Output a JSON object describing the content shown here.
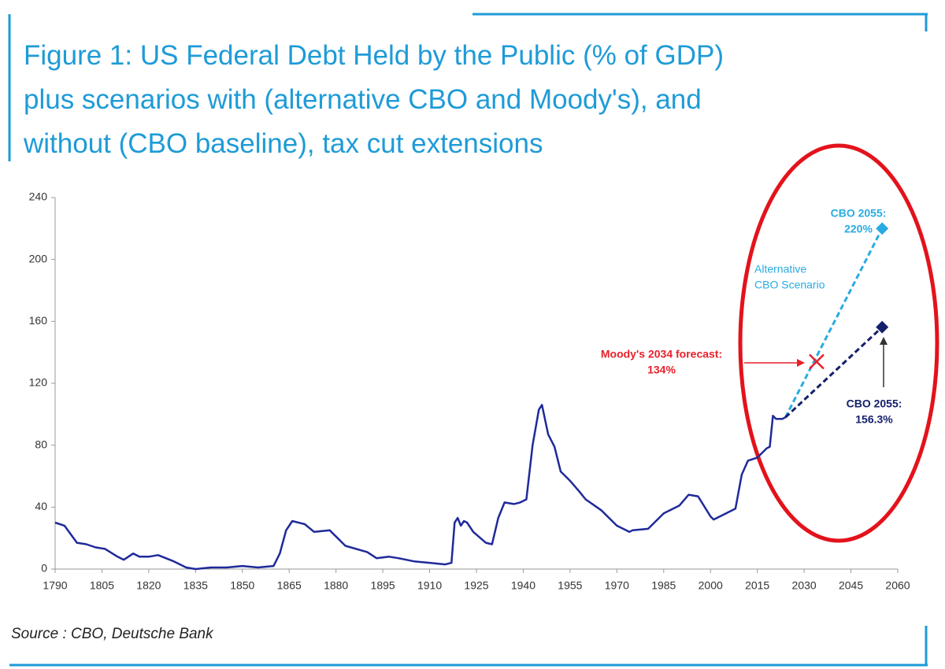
{
  "chart_data": {
    "type": "line",
    "title_lines": [
      "Figure 1: US Federal Debt Held by the Public (% of GDP)",
      "plus scenarios with (alternative CBO and Moody's), and",
      "without (CBO baseline), tax cut extensions"
    ],
    "source": "Source : CBO, Deutsche Bank",
    "xlim": [
      1790,
      2060
    ],
    "xticks": [
      1790,
      1805,
      1820,
      1835,
      1850,
      1865,
      1880,
      1895,
      1910,
      1925,
      1940,
      1955,
      1970,
      1985,
      2000,
      2015,
      2030,
      2045,
      2060
    ],
    "ylim": [
      0,
      240
    ],
    "yticks": [
      0,
      40,
      80,
      120,
      160,
      200,
      240
    ],
    "series": [
      {
        "color": "#1f2a9a",
        "style": "solid",
        "x": [
          1790,
          1793,
          1797,
          1800,
          1803,
          1806,
          1810,
          1812,
          1815,
          1817,
          1820,
          1823,
          1828,
          1832,
          1835,
          1840,
          1845,
          1850,
          1855,
          1860,
          1862,
          1864,
          1866,
          1870,
          1873,
          1878,
          1880,
          1883,
          1890,
          1893,
          1897,
          1900,
          1905,
          1910,
          1915,
          1917,
          1918,
          1919,
          1920,
          1921,
          1922,
          1924,
          1928,
          1930,
          1932,
          1934,
          1937,
          1939,
          1941,
          1943,
          1945,
          1946,
          1948,
          1950,
          1952,
          1955,
          1958,
          1960,
          1965,
          1970,
          1974,
          1975,
          1980,
          1985,
          1990,
          1993,
          1996,
          2000,
          2001,
          2005,
          2008,
          2010,
          2012,
          2015,
          2018,
          2019,
          2020,
          2021,
          2023,
          2024
        ],
        "values": [
          30,
          28,
          17,
          16,
          14,
          13,
          8,
          6,
          10,
          8,
          8,
          9,
          5,
          1,
          0,
          1,
          1,
          2,
          1,
          2,
          10,
          25,
          31,
          29,
          24,
          25,
          21,
          15,
          11,
          7,
          8,
          7,
          5,
          4,
          3,
          4,
          30,
          33,
          28,
          31,
          30,
          24,
          17,
          16,
          33,
          43,
          42,
          43,
          45,
          80,
          103,
          106,
          87,
          79,
          63,
          57,
          50,
          45,
          38,
          28,
          24,
          25,
          26,
          36,
          41,
          48,
          47,
          34,
          32,
          36,
          39,
          61,
          70,
          72,
          78,
          79,
          99,
          97,
          97,
          98
        ]
      },
      {
        "color": "#29abe2",
        "style": "dashed",
        "marker": "diamond",
        "x": [
          2024,
          2055
        ],
        "values": [
          98,
          220
        ]
      },
      {
        "color": "#14206b",
        "style": "dashed",
        "marker": "diamond",
        "x": [
          2024,
          2055
        ],
        "values": [
          98,
          156.3
        ]
      },
      {
        "color": "#e8202a",
        "style": "none",
        "marker": "x",
        "x": [
          2034
        ],
        "values": [
          134
        ]
      }
    ],
    "annotations": [
      {
        "lines": [
          "CBO 2055:",
          "220%"
        ],
        "color": "#29abe2"
      },
      {
        "lines": [
          "Alternative",
          "CBO Scenario"
        ],
        "color": "#29abe2"
      },
      {
        "lines": [
          "Moody's 2034 forecast:",
          "134%"
        ],
        "color": "#e8202a"
      },
      {
        "lines": [
          "CBO 2055:",
          "156.3%"
        ],
        "color": "#14206b"
      }
    ]
  }
}
